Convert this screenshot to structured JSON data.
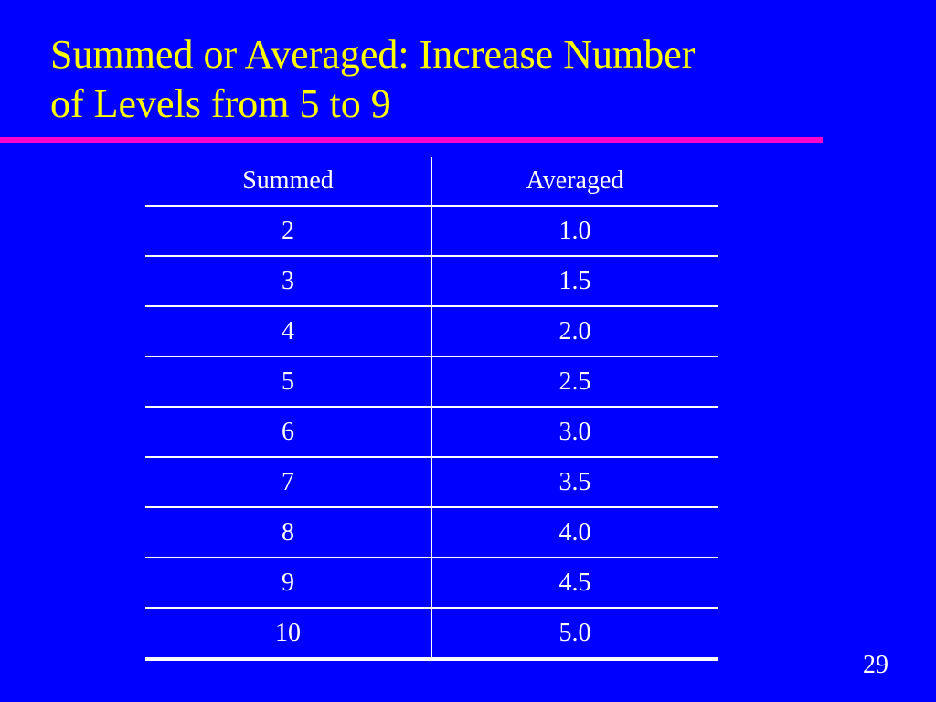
{
  "slide": {
    "title_line1": "Summed or Averaged: Increase Number",
    "title_line2": "of Levels from 5 to 9",
    "page_number": "29"
  },
  "table": {
    "headers": [
      "Summed",
      "Averaged"
    ],
    "rows": [
      [
        "2",
        "1.0"
      ],
      [
        "3",
        "1.5"
      ],
      [
        "4",
        "2.0"
      ],
      [
        "5",
        "2.5"
      ],
      [
        "6",
        "3.0"
      ],
      [
        "7",
        "3.5"
      ],
      [
        "8",
        "4.0"
      ],
      [
        "9",
        "4.5"
      ],
      [
        "10",
        "5.0"
      ]
    ]
  },
  "colors": {
    "background": "#0000ff",
    "title": "#ffff00",
    "title_rule": "#ff00cc",
    "table_text": "#ffffff"
  }
}
